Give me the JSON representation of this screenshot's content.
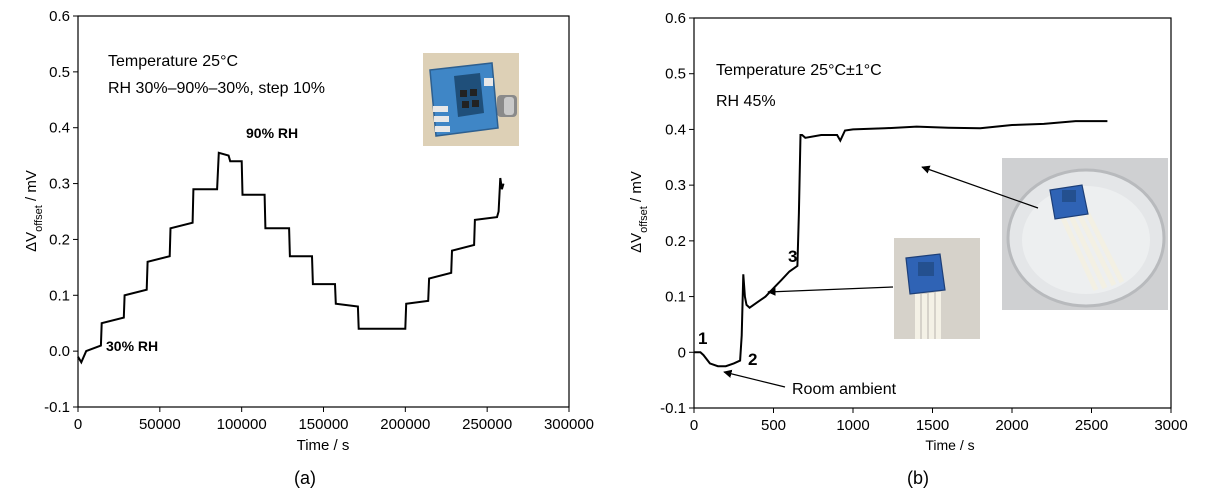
{
  "chart_data": [
    {
      "type": "line",
      "caption": "(a)",
      "xlabel": "Time / s",
      "ylabel_main": "ΔV",
      "ylabel_sub": "offset",
      "ylabel_unit": " / mV",
      "xlim": [
        0,
        300000
      ],
      "ylim": [
        -0.1,
        0.6
      ],
      "xticks": [
        0,
        50000,
        100000,
        150000,
        200000,
        250000,
        300000
      ],
      "xtick_labels": [
        "0",
        "50000",
        "100000",
        "150000",
        "200000",
        "250000",
        "300000"
      ],
      "yticks": [
        -0.1,
        0.0,
        0.1,
        0.2,
        0.3,
        0.4,
        0.5,
        0.6
      ],
      "ytick_labels": [
        "-0.1",
        "0.0",
        "0.1",
        "0.2",
        "0.3",
        "0.4",
        "0.5",
        "0.6"
      ],
      "annotations": {
        "line1": "Temperature 25°C",
        "line2": "RH 30%–90%–30%, step 10%",
        "peak_label": "90% RH",
        "start_label": "30% RH"
      },
      "series": [
        {
          "x": [
            0,
            2000,
            5000,
            14000,
            14500,
            28000,
            28500,
            42000,
            42500,
            56000,
            56500,
            70000,
            70500,
            85000,
            86000,
            92000,
            93000,
            100000,
            100500,
            114000,
            114500,
            129000,
            129500,
            143000,
            143500,
            157000,
            157500,
            171000,
            171500,
            185000,
            200000,
            200500,
            214000,
            214500,
            228000,
            228500,
            242000,
            242500,
            256000,
            257000,
            258000,
            259000,
            260000
          ],
          "y": [
            -0.01,
            -0.02,
            0.0,
            0.01,
            0.05,
            0.06,
            0.1,
            0.11,
            0.16,
            0.17,
            0.22,
            0.23,
            0.29,
            0.29,
            0.355,
            0.35,
            0.34,
            0.34,
            0.28,
            0.28,
            0.22,
            0.22,
            0.17,
            0.17,
            0.12,
            0.12,
            0.085,
            0.08,
            0.04,
            0.04,
            0.04,
            0.085,
            0.09,
            0.13,
            0.14,
            0.18,
            0.19,
            0.235,
            0.24,
            0.25,
            0.31,
            0.29,
            0.3
          ]
        }
      ]
    },
    {
      "type": "line",
      "caption": "(b)",
      "xlabel": "Time / s",
      "ylabel_main": "ΔV",
      "ylabel_sub": "offset",
      "ylabel_unit": " / mV",
      "xlim": [
        0,
        3000
      ],
      "ylim": [
        -0.1,
        0.6
      ],
      "xticks": [
        0,
        500,
        1000,
        1500,
        2000,
        2500,
        3000
      ],
      "xtick_labels": [
        "0",
        "500",
        "1000",
        "1500",
        "2000",
        "2500",
        "3000"
      ],
      "yticks": [
        -0.1,
        0.0,
        0.1,
        0.2,
        0.3,
        0.4,
        0.5,
        0.6
      ],
      "ytick_labels": [
        "-0.1",
        "0",
        "0.1",
        "0.2",
        "0.3",
        "0.4",
        "0.5",
        "0.6"
      ],
      "annotations": {
        "line1": "Temperature 25°C±1°C",
        "line2": "RH 45%",
        "room_ambient": "Room ambient",
        "p1": "1",
        "p2": "2",
        "p3": "3"
      },
      "series": [
        {
          "x": [
            0,
            40,
            60,
            100,
            150,
            200,
            250,
            290,
            300,
            310,
            320,
            330,
            350,
            400,
            450,
            500,
            550,
            600,
            650,
            660,
            670,
            680,
            700,
            800,
            900,
            920,
            950,
            1000,
            1200,
            1400,
            1600,
            1800,
            2000,
            2200,
            2400,
            2600
          ],
          "y": [
            0.0,
            0.0,
            -0.005,
            -0.02,
            -0.025,
            -0.025,
            -0.02,
            -0.015,
            0.03,
            0.14,
            0.1,
            0.085,
            0.08,
            0.09,
            0.1,
            0.115,
            0.13,
            0.145,
            0.155,
            0.25,
            0.39,
            0.39,
            0.385,
            0.39,
            0.39,
            0.38,
            0.398,
            0.4,
            0.402,
            0.405,
            0.403,
            0.402,
            0.408,
            0.41,
            0.415,
            0.415
          ]
        }
      ]
    }
  ]
}
